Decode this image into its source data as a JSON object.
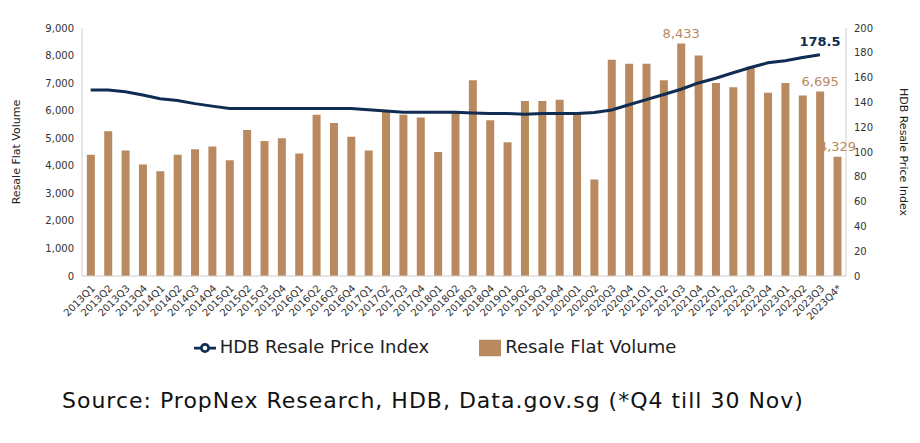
{
  "chart_data": {
    "type": "bar",
    "caption": "Source: PropNex Research, HDB, Data.gov.sg (*Q4 till 30 Nov)",
    "y_label": "Resale Flat Volume",
    "y2_label": "HDB Resale Price Index",
    "categories": [
      "2013Q1",
      "2013Q2",
      "2013Q3",
      "2013Q4",
      "2014Q1",
      "2014Q2",
      "2014Q3",
      "2014Q4",
      "2015Q1",
      "2015Q2",
      "2015Q3",
      "2015Q4",
      "2016Q1",
      "2016Q2",
      "2016Q3",
      "2016Q4",
      "2017Q1",
      "2017Q2",
      "2017Q3",
      "2017Q4",
      "2018Q1",
      "2018Q2",
      "2018Q3",
      "2018Q4",
      "2019Q1",
      "2019Q2",
      "2019Q3",
      "2019Q4",
      "2020Q1",
      "2020Q2",
      "2020Q3",
      "2020Q4",
      "2021Q1",
      "2021Q2",
      "2021Q3",
      "2021Q4",
      "2022Q1",
      "2022Q2",
      "2022Q3",
      "2022Q4",
      "2023Q1",
      "2023Q2",
      "2023Q3",
      "2023Q4*"
    ],
    "series": [
      {
        "name": "Resale Flat Volume",
        "type": "bar",
        "color": "#b98a60",
        "values": [
          4400,
          5250,
          4550,
          4050,
          3800,
          4400,
          4600,
          4700,
          4200,
          5300,
          4900,
          5000,
          4450,
          5850,
          5550,
          5050,
          4550,
          5950,
          5850,
          5750,
          4500,
          5950,
          7100,
          5650,
          4850,
          6350,
          6350,
          6400,
          5950,
          3500,
          7850,
          7700,
          7700,
          7100,
          8433,
          8000,
          7000,
          6850,
          7600,
          6650,
          7000,
          6550,
          6695,
          4329
        ],
        "value_labels": [
          null,
          null,
          null,
          null,
          null,
          null,
          null,
          null,
          null,
          null,
          null,
          null,
          null,
          null,
          null,
          null,
          null,
          null,
          null,
          null,
          null,
          null,
          null,
          null,
          null,
          null,
          null,
          null,
          null,
          null,
          null,
          null,
          null,
          null,
          "8,433",
          null,
          null,
          null,
          null,
          null,
          null,
          null,
          "6,695",
          "4,329"
        ]
      },
      {
        "name": "HDB Resale Price Index",
        "type": "line",
        "axis": "y2",
        "color": "#0f2d52",
        "values": [
          150,
          150,
          148.5,
          146,
          143,
          141.5,
          139,
          137,
          135,
          135,
          135,
          135,
          135,
          135,
          135,
          135,
          134,
          133,
          132,
          132,
          132,
          132,
          131.5,
          131,
          131,
          130.5,
          131,
          131,
          131,
          131.9,
          133.9,
          138.1,
          142.2,
          146.4,
          150.6,
          155.7,
          159.5,
          163.9,
          168.1,
          171.9,
          173.6,
          176.2,
          178.5,
          null
        ],
        "value_labels": [
          null,
          null,
          null,
          null,
          null,
          null,
          null,
          null,
          null,
          null,
          null,
          null,
          null,
          null,
          null,
          null,
          null,
          null,
          null,
          null,
          null,
          null,
          null,
          null,
          null,
          null,
          null,
          null,
          null,
          null,
          null,
          null,
          null,
          null,
          null,
          null,
          null,
          null,
          null,
          null,
          null,
          null,
          "178.5",
          null
        ]
      }
    ],
    "ylim": [
      0,
      9000
    ],
    "yticks": [
      0,
      {
        "value": 1000,
        "label": "1,000"
      },
      {
        "value": 2000,
        "label": "2,000"
      },
      {
        "value": 3000,
        "label": "3,000"
      },
      {
        "value": 4000,
        "label": "4,000"
      },
      {
        "value": 5000,
        "label": "5,000"
      },
      {
        "value": 6000,
        "label": "6,000"
      },
      {
        "value": 7000,
        "label": "7,000"
      },
      {
        "value": 8000,
        "label": "8,000"
      },
      {
        "value": 9000,
        "label": "9,000"
      }
    ],
    "y2lim": [
      0,
      200
    ],
    "y2ticks": [
      0,
      20,
      40,
      60,
      80,
      100,
      120,
      140,
      160,
      180,
      200
    ],
    "grid": false,
    "legend": "bottom"
  }
}
